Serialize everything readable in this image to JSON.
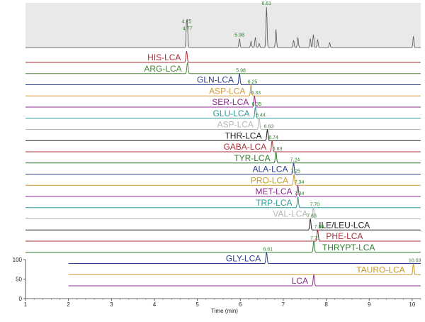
{
  "chart_data": {
    "type": "line",
    "xlabel": "Time (min)",
    "xlim": [
      1,
      10.2
    ],
    "x_ticks": [
      "1",
      "2",
      "3",
      "4",
      "5",
      "6",
      "7",
      "8",
      "9",
      "10"
    ],
    "y_ticks": [
      "0",
      "50",
      "100"
    ],
    "tic_peaks": [
      {
        "rt": 4.75,
        "label": "4.75",
        "height": 0.55
      },
      {
        "rt": 4.77,
        "label": "4.77",
        "height": 0.38
      },
      {
        "rt": 5.98,
        "label": "5.98",
        "height": 0.22
      },
      {
        "rt": 6.61,
        "label": "6.61",
        "height": 1.0
      }
    ],
    "series": [
      {
        "name": "HIS-LCA",
        "color": "#a83236",
        "rt": 4.75
      },
      {
        "name": "ARG-LCA",
        "color": "#4a8a3a",
        "rt": 4.77
      },
      {
        "name": "GLN-LCA",
        "color": "#2e3f8f",
        "rt": 5.98,
        "label": "5.98"
      },
      {
        "name": "ASP-LCA",
        "color": "#d29a3a",
        "rt": 6.25,
        "label": "6.25"
      },
      {
        "name": "SER-LCA",
        "color": "#8c2a8c",
        "rt": 6.33,
        "label": "6.33"
      },
      {
        "name": "GLU-LCA",
        "color": "#2a9a9a",
        "rt": 6.35,
        "label": "6.35"
      },
      {
        "name": "ASP-LCA",
        "color": "#b8b8b8",
        "rt": 6.44,
        "label": "6.44"
      },
      {
        "name": "THR-LCA",
        "color": "#222222",
        "rt": 6.63,
        "label": "6.63"
      },
      {
        "name": "GABA-LCA",
        "color": "#a83236",
        "rt": 6.74,
        "label": "6.74"
      },
      {
        "name": "TYR-LCA",
        "color": "#2f7d2f",
        "rt": 6.83,
        "label": "6.83"
      },
      {
        "name": "ALA-LCA",
        "color": "#2e3f8f",
        "rt": 7.24,
        "label": "7.24"
      },
      {
        "name": "PRO-LCA",
        "color": "#c79a2a",
        "rt": 7.25,
        "label": "7.25"
      },
      {
        "name": "MET-LCA",
        "color": "#8c2a8c",
        "rt": 7.34,
        "label": "7.34"
      },
      {
        "name": "TRP-LCA",
        "color": "#2a9a9a",
        "rt": 7.34,
        "label": "7.34"
      },
      {
        "name": "VAL-LCA",
        "color": "#b8b8b8",
        "rt": 7.7,
        "label": "7.70"
      },
      {
        "name": "ILE/LEU-LCA",
        "color": "#222222",
        "rt": 7.63,
        "label": "7.63"
      },
      {
        "name": "PHE-LCA",
        "color": "#a83236",
        "rt": 7.8,
        "label": "7.80"
      },
      {
        "name": "THRYPT-LCA",
        "color": "#2f7d2f",
        "rt": 7.71,
        "label": "7.71"
      },
      {
        "name": "GLY-LCA",
        "color": "#2e3f8f",
        "rt": 6.61,
        "label": "6.61"
      },
      {
        "name": "TAURO-LCA",
        "color": "#c79a2a",
        "rt": 10.03,
        "label": "10.03"
      },
      {
        "name": "LCA",
        "color": "#8c2a8c",
        "rt": 7.71
      }
    ]
  }
}
